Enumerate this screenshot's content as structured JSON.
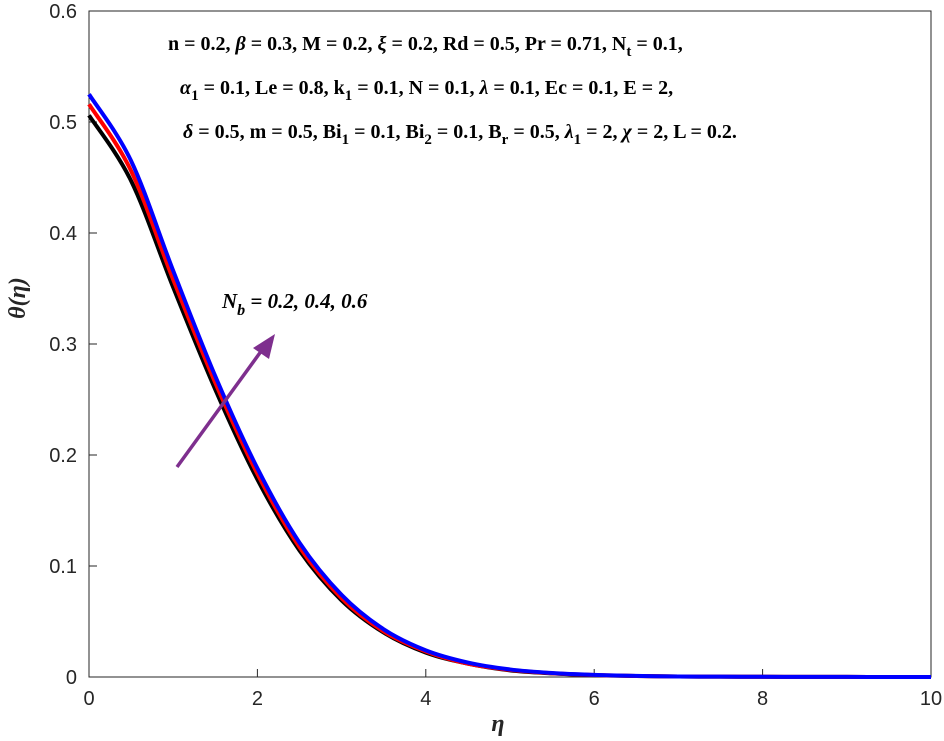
{
  "chart_data": {
    "type": "line",
    "xlabel": "η",
    "ylabel": "θ(η)",
    "xlim": [
      0,
      10
    ],
    "ylim": [
      0,
      0.6
    ],
    "xticks": [
      "0",
      "2",
      "4",
      "6",
      "8",
      "10"
    ],
    "yticks": [
      "0",
      "0.1",
      "0.2",
      "0.3",
      "0.4",
      "0.5",
      "0.6"
    ],
    "x": [
      0,
      0.5,
      1,
      1.5,
      2,
      2.5,
      3,
      3.5,
      4,
      4.5,
      5,
      5.5,
      6,
      6.5,
      7,
      7.5,
      8,
      8.5,
      9,
      9.5,
      10
    ],
    "series": [
      {
        "color": "#000000",
        "values": [
          0.506,
          0.447,
          0.351,
          0.259,
          0.178,
          0.114,
          0.069,
          0.04,
          0.022,
          0.012,
          0.006,
          0.0033,
          0.0017,
          0.0009,
          0.0005,
          0.0003,
          0.0002,
          0.0001,
          0.0001,
          0.0,
          0.0
        ]
      },
      {
        "color": "#ff0000",
        "values": [
          0.516,
          0.456,
          0.358,
          0.265,
          0.183,
          0.117,
          0.071,
          0.041,
          0.023,
          0.012,
          0.0064,
          0.0034,
          0.0018,
          0.0009,
          0.0005,
          0.0003,
          0.0002,
          0.0001,
          0.0001,
          0.0,
          0.0
        ]
      },
      {
        "color": "#0000ff",
        "values": [
          0.525,
          0.465,
          0.366,
          0.271,
          0.188,
          0.121,
          0.074,
          0.043,
          0.024,
          0.013,
          0.0068,
          0.0036,
          0.0019,
          0.001,
          0.0005,
          0.0003,
          0.0002,
          0.0001,
          0.0001,
          0.0,
          0.0
        ]
      }
    ],
    "annotation": {
      "prefix": "N",
      "sub": "b",
      "values": " = 0.2, 0.4, 0.6",
      "arrow_color": "#7e2f8e"
    },
    "params": {
      "line1": [
        "n = 0.2, ",
        "β",
        " = 0.3, M = 0.2, ",
        "ξ",
        " = 0.2, Rd = 0.5, Pr = 0.71, N",
        "t",
        " = 0.1,"
      ],
      "line2": [
        "α",
        "1",
        " = 0.1, Le = 0.8, k",
        "1",
        " = 0.1, N = 0.1, ",
        "λ",
        " = 0.1, Ec = 0.1, E = 2,"
      ],
      "line3": [
        "δ",
        " = 0.5, m = 0.5, Bi",
        "1",
        " = 0.1, Bi",
        "2",
        " = 0.1, B",
        "r",
        " = 0.5, ",
        "λ",
        "1",
        " = 2, ",
        "χ",
        " = 2, L = 0.2."
      ]
    }
  }
}
